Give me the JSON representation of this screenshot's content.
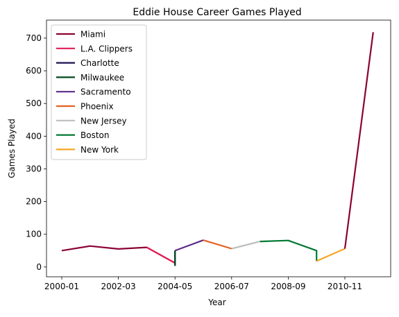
{
  "chart_data": {
    "type": "line",
    "title": "Eddie House Career Games Played",
    "xlabel": "Year",
    "ylabel": "Games Played",
    "x_tick_labels": [
      "2000-01",
      "2002-03",
      "2004-05",
      "2006-07",
      "2008-09",
      "2010-11"
    ],
    "y_ticks": [
      0,
      100,
      200,
      300,
      400,
      500,
      600,
      700
    ],
    "xlim": [
      2000.0,
      2012.0
    ],
    "ylim": [
      -30,
      755
    ],
    "grid": false,
    "legend_position": "upper-left",
    "series": [
      {
        "name": "Miami",
        "color": "#8b0034",
        "points": [
          [
            2000,
            50
          ],
          [
            2001,
            64
          ],
          [
            2002,
            55
          ],
          [
            2003,
            60
          ],
          [
            2004,
            12
          ]
        ]
      },
      {
        "name": "L.A. Clippers",
        "color": "#e31b54",
        "points": [
          [
            2003,
            60
          ],
          [
            2004,
            12
          ]
        ]
      },
      {
        "name": "Charlotte",
        "color": "#1b1050",
        "points": [
          [
            2004,
            5
          ],
          [
            2004,
            50
          ]
        ]
      },
      {
        "name": "Milwaukee",
        "color": "#00471b",
        "points": [
          [
            2004,
            3
          ],
          [
            2004,
            50
          ]
        ]
      },
      {
        "name": "Sacramento",
        "color": "#5b2a86",
        "points": [
          [
            2004,
            50
          ],
          [
            2005,
            82
          ]
        ]
      },
      {
        "name": "Phoenix",
        "color": "#e56020",
        "points": [
          [
            2005,
            82
          ],
          [
            2006,
            56
          ]
        ]
      },
      {
        "name": "New Jersey",
        "color": "#bdbdbd",
        "points": [
          [
            2006,
            56
          ],
          [
            2007,
            78
          ]
        ]
      },
      {
        "name": "Boston",
        "color": "#007a33",
        "points": [
          [
            2007,
            78
          ],
          [
            2008,
            81
          ],
          [
            2009,
            50
          ],
          [
            2009,
            18
          ]
        ]
      },
      {
        "name": "New York",
        "color": "#f5a623",
        "points": [
          [
            2009,
            18
          ],
          [
            2010,
            56
          ]
        ]
      },
      {
        "name": "Miami",
        "color": "#8b0034",
        "points": [
          [
            2010,
            56
          ],
          [
            2011,
            718
          ]
        ],
        "in_legend": false
      }
    ]
  }
}
